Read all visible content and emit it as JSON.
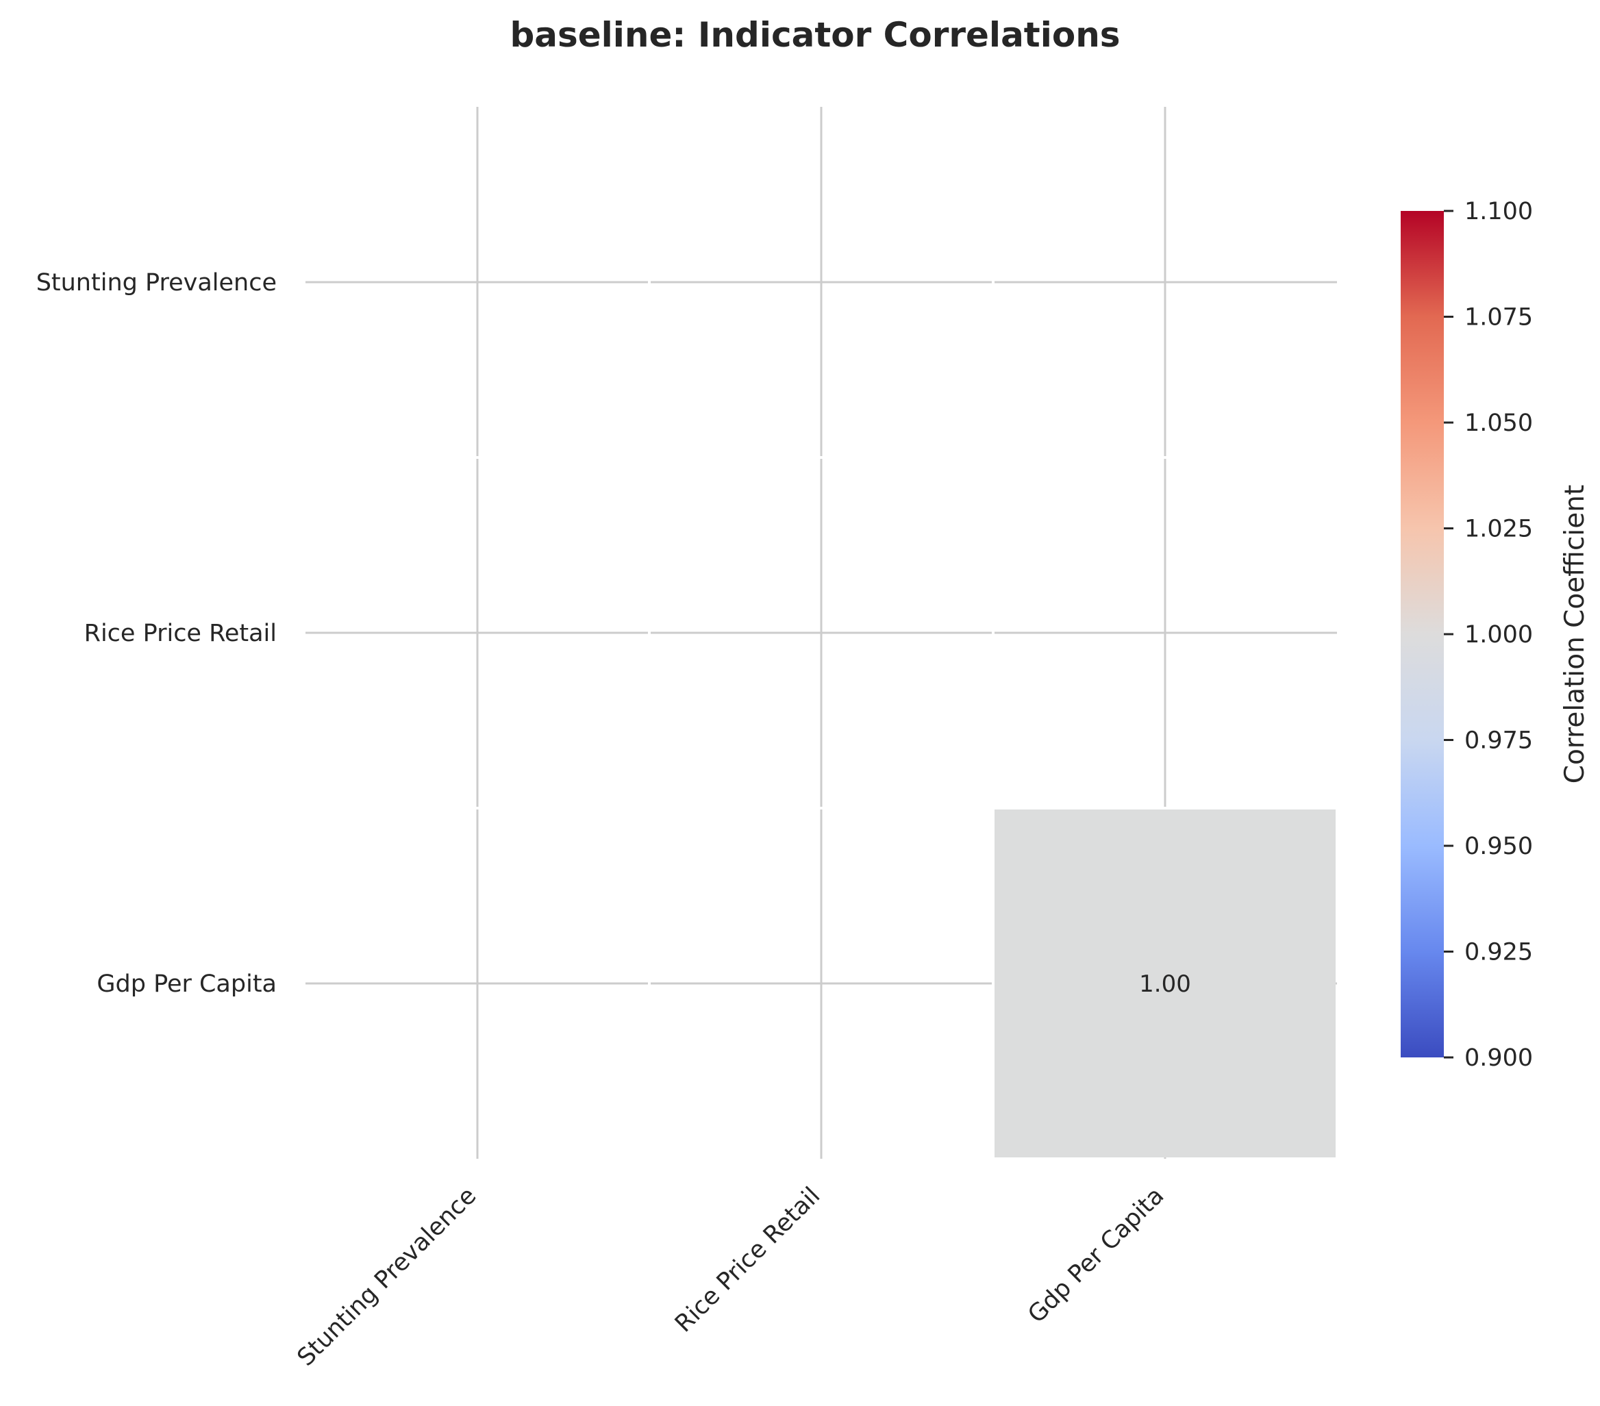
{
  "chart_data": {
    "type": "heatmap",
    "title": "baseline: Indicator Correlations",
    "row_labels": [
      "Stunting Prevalence",
      "Rice Price Retail",
      "Gdp Per Capita"
    ],
    "col_labels": [
      "Stunting Prevalence",
      "Rice Price Retail",
      "Gdp Per Capita"
    ],
    "values": [
      [
        null,
        null,
        null
      ],
      [
        null,
        null,
        null
      ],
      [
        null,
        null,
        1.0
      ]
    ],
    "annotations": [
      [
        "",
        "",
        ""
      ],
      [
        "",
        "",
        ""
      ],
      [
        "",
        "",
        "1.00"
      ]
    ],
    "colormap": "coolwarm",
    "cell_color": "#dcdddd",
    "grid": true,
    "grid_color": "#cccccc",
    "colorbar": {
      "label": "Correlation Coefficient",
      "range": [
        0.9,
        1.1
      ],
      "ticks": [
        1.1,
        1.075,
        1.05,
        1.025,
        1.0,
        0.975,
        0.95,
        0.925,
        0.9
      ],
      "tick_labels": [
        "1.100",
        "1.075",
        "1.050",
        "1.025",
        "1.000",
        "0.975",
        "0.950",
        "0.925",
        "0.900"
      ],
      "colors": [
        "#3b4cc0",
        "#6788ee",
        "#9abbff",
        "#c9d7f0",
        "#dddcdc",
        "#f6c5ad",
        "#f4987a",
        "#e26952",
        "#b40426"
      ]
    }
  }
}
